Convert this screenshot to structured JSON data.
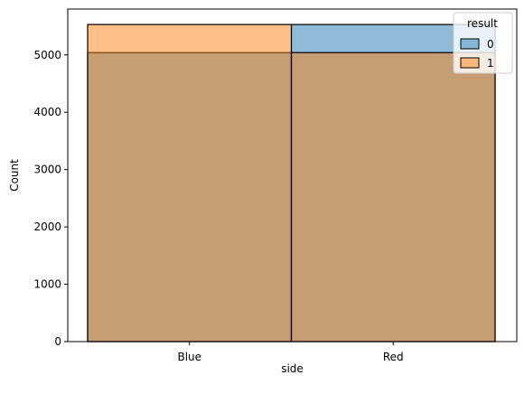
{
  "chart_data": {
    "type": "bar",
    "xlabel": "side",
    "ylabel": "Count",
    "categories": [
      "Blue",
      "Red"
    ],
    "ylim": [
      0,
      5800
    ],
    "yticks": [
      0,
      1000,
      2000,
      3000,
      4000,
      5000
    ],
    "series": [
      {
        "name": "0",
        "values": [
          5040,
          5530
        ],
        "color": "#1f77b4"
      },
      {
        "name": "1",
        "values": [
          5530,
          5040
        ],
        "color": "#ff7f0e"
      }
    ],
    "legend": {
      "title": "result",
      "position": "top-right"
    }
  }
}
